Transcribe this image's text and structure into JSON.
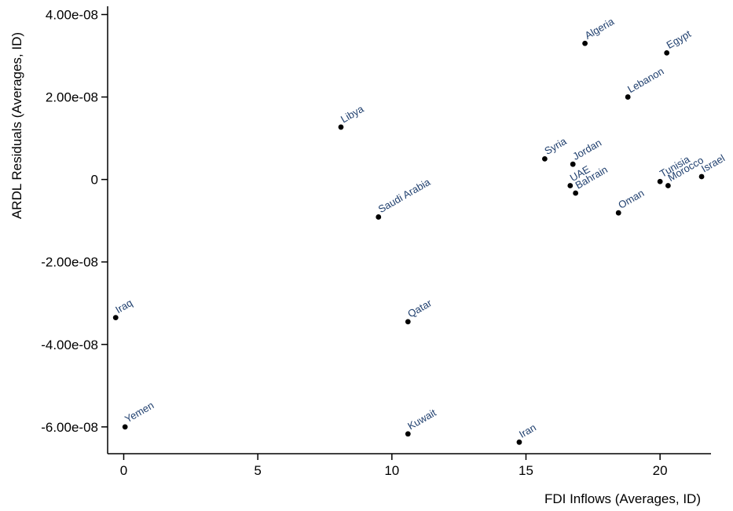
{
  "chart_data": {
    "type": "scatter",
    "xlabel": "FDI Inflows (Averages, ID)",
    "ylabel": "ARDL Residuals (Averages, ID)",
    "xlim": [
      -0.6,
      21.9
    ],
    "ylim": [
      -6.65e-08,
      4.2e-08
    ],
    "xticks": [
      0,
      5,
      10,
      15,
      20
    ],
    "xtick_labels": [
      "0",
      "5",
      "10",
      "15",
      "20"
    ],
    "yticks": [
      4e-08,
      2e-08,
      0,
      -2e-08,
      -4e-08,
      -6e-08
    ],
    "ytick_labels": [
      "4.00e-08",
      "2.00e-08",
      "0",
      "-2.00e-08",
      "-4.00e-08",
      "-6.00e-08"
    ],
    "grid": false,
    "point_color": "#000000",
    "label_color": "#1f3f6e",
    "points": [
      {
        "label": "Algeria",
        "x": 17.2,
        "y": 3.3e-08
      },
      {
        "label": "Egypt",
        "x": 20.25,
        "y": 3.07e-08
      },
      {
        "label": "Lebanon",
        "x": 18.8,
        "y": 2e-08
      },
      {
        "label": "Libya",
        "x": 8.1,
        "y": 1.27e-08
      },
      {
        "label": "Syria",
        "x": 15.7,
        "y": 5e-09
      },
      {
        "label": "Jordan",
        "x": 16.75,
        "y": 3.7e-09
      },
      {
        "label": "UAE",
        "x": 16.65,
        "y": -1.5e-09
      },
      {
        "label": "Bahrain",
        "x": 16.85,
        "y": -3.3e-09
      },
      {
        "label": "Tunisia",
        "x": 20.0,
        "y": -5e-10
      },
      {
        "label": "Morocco",
        "x": 20.3,
        "y": -1.5e-09
      },
      {
        "label": "Israel",
        "x": 21.55,
        "y": 7e-10
      },
      {
        "label": "Oman",
        "x": 18.45,
        "y": -8.1e-09
      },
      {
        "label": "Saudi Arabia",
        "x": 9.5,
        "y": -9.1e-09
      },
      {
        "label": "Iraq",
        "x": -0.3,
        "y": -3.35e-08
      },
      {
        "label": "Qatar",
        "x": 10.6,
        "y": -3.45e-08
      },
      {
        "label": "Yemen",
        "x": 0.05,
        "y": -6e-08
      },
      {
        "label": "Kuwait",
        "x": 10.6,
        "y": -6.17e-08
      },
      {
        "label": "Iran",
        "x": 14.75,
        "y": -6.37e-08
      }
    ]
  }
}
